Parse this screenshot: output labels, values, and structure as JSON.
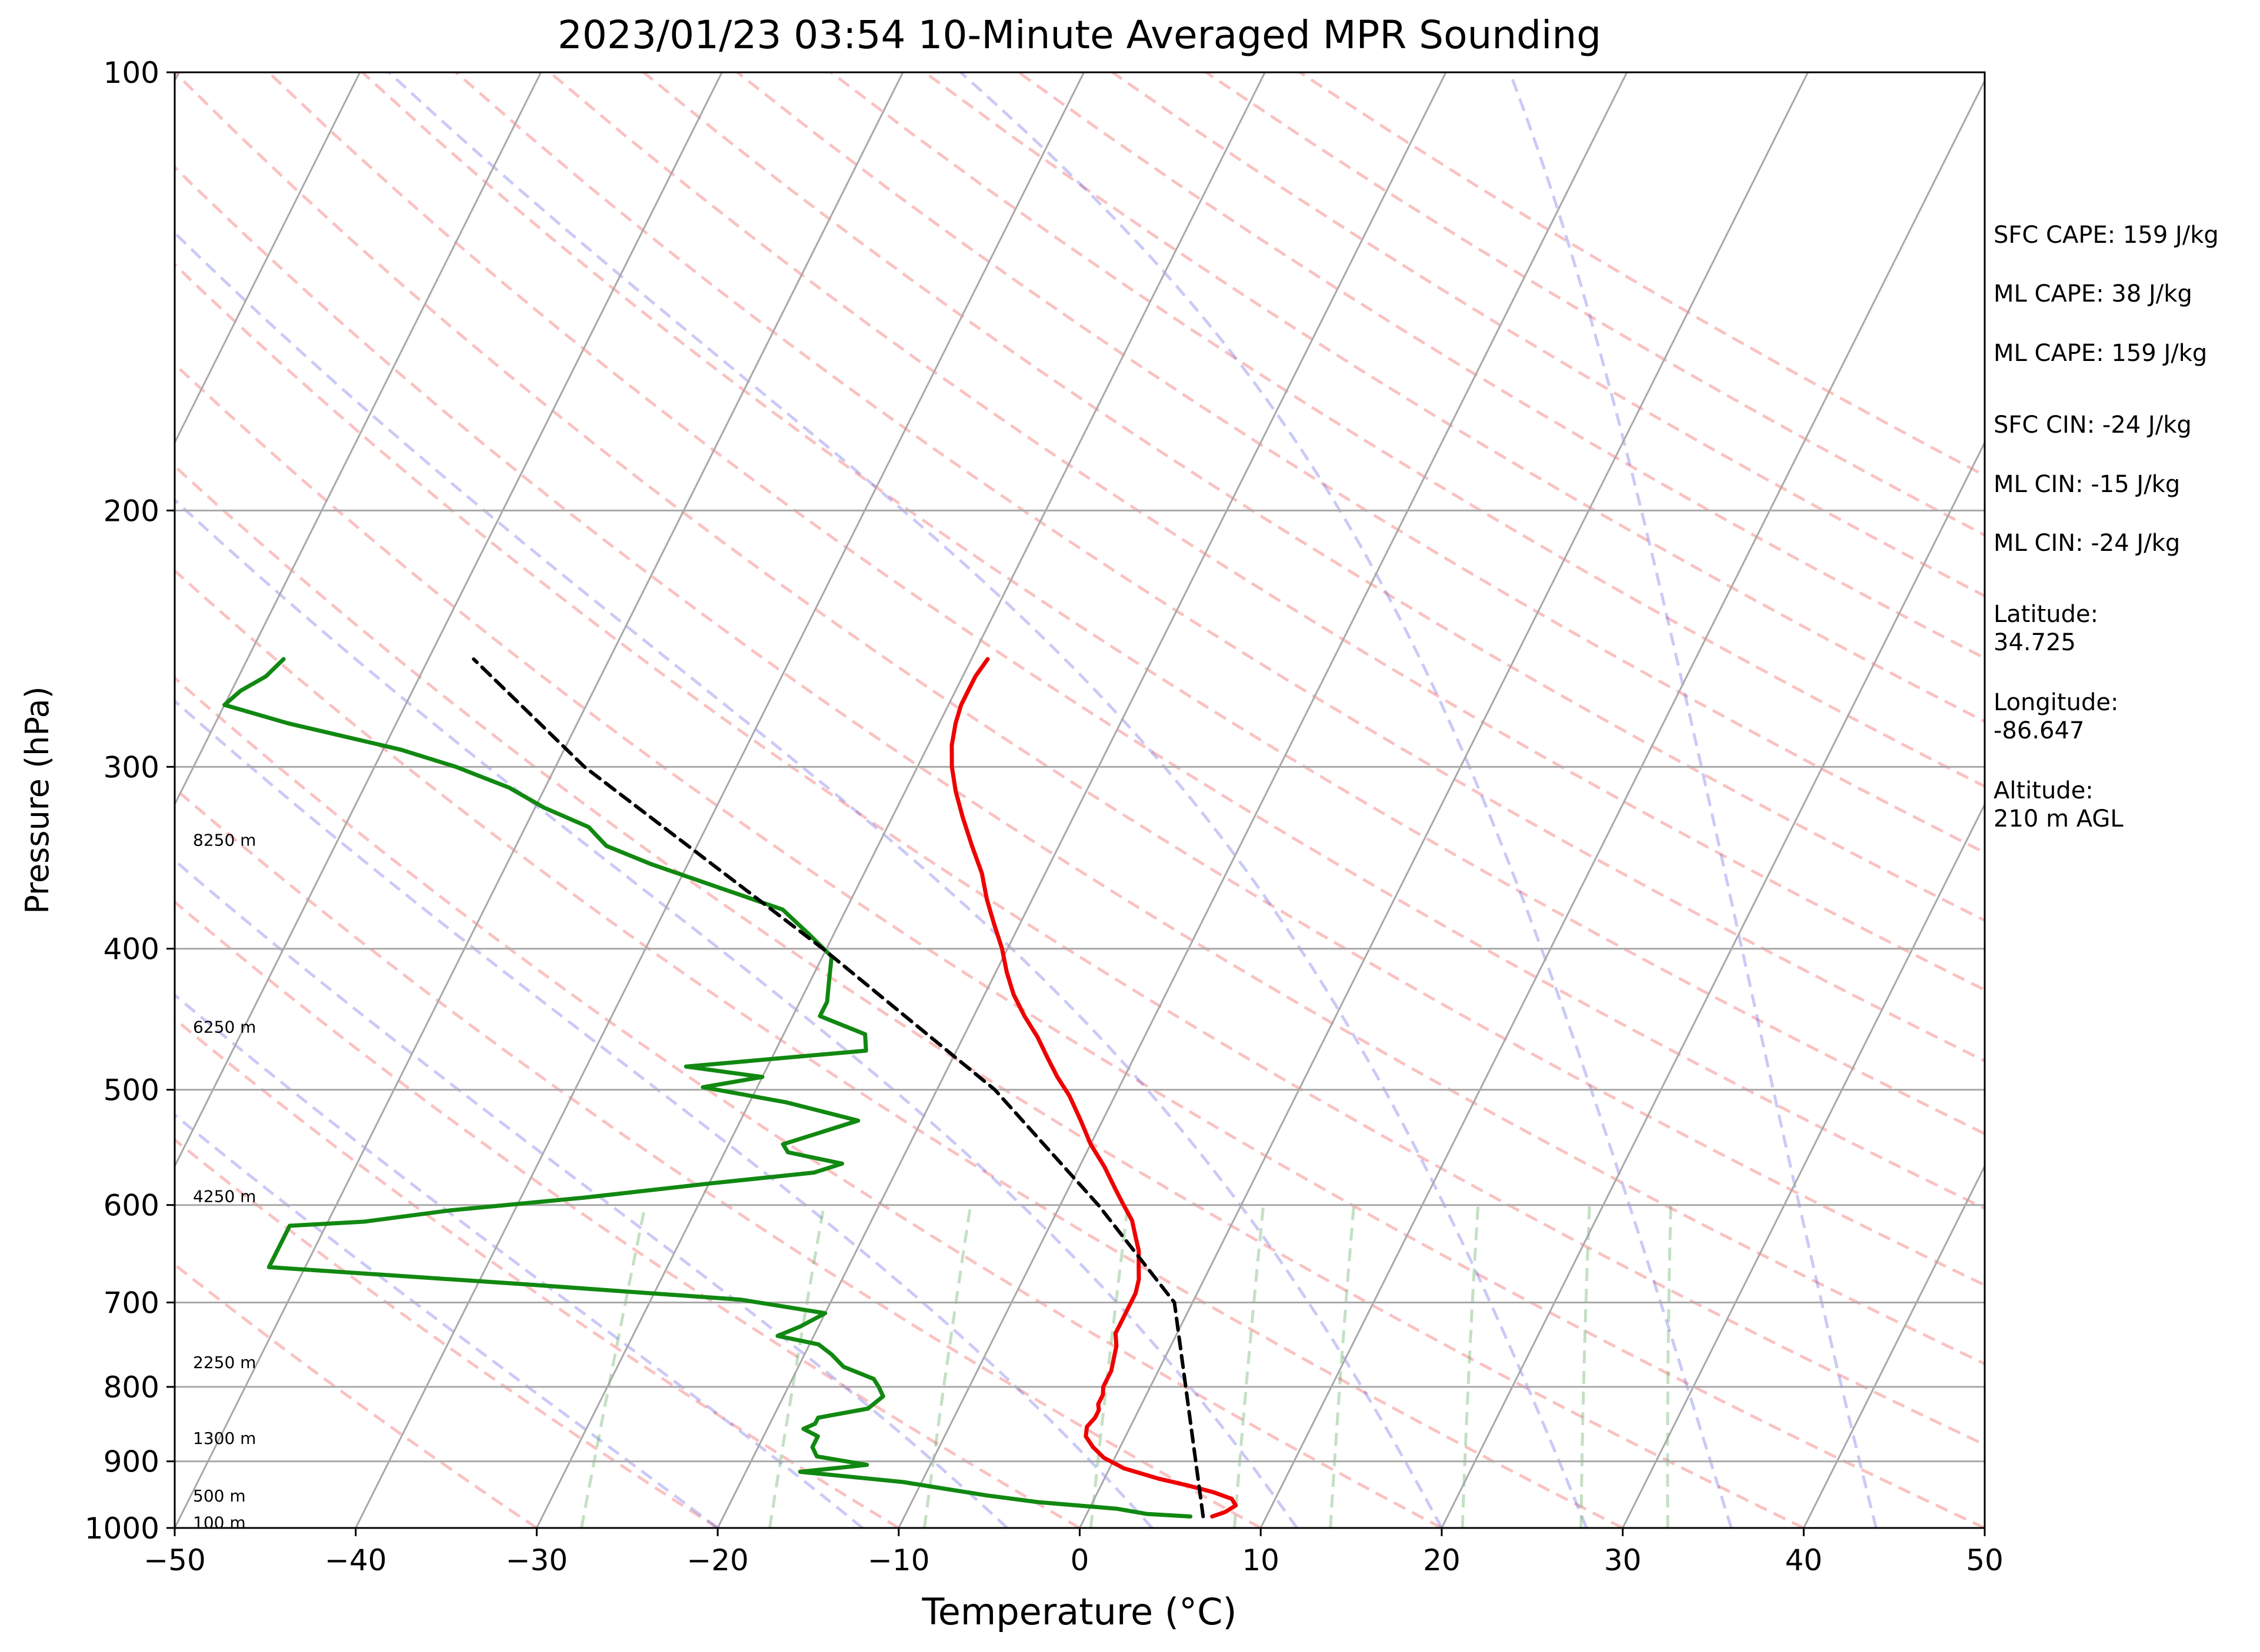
{
  "chart_data": {
    "type": "line",
    "title": "2023/01/23 03:54 10-Minute Averaged MPR Sounding",
    "xlabel": "Temperature (°C)",
    "ylabel": "Pressure (hPa)",
    "xlim": [
      -50,
      50
    ],
    "ylim": [
      1000,
      100
    ],
    "y_scale": "log",
    "skew": true,
    "grid": true,
    "x_ticks": [
      "−50",
      "−40",
      "−30",
      "−20",
      "−10",
      "0",
      "10",
      "20",
      "30",
      "40",
      "50"
    ],
    "y_ticks": [
      "100",
      "200",
      "300",
      "400",
      "500",
      "600",
      "700",
      "800",
      "900",
      "1000"
    ],
    "series": [
      {
        "role": "temperature",
        "color": "#ee0000",
        "p": [
          982,
          975,
          965,
          955,
          945,
          935,
          925,
          910,
          895,
          880,
          865,
          852,
          840,
          830,
          822,
          810,
          800,
          790,
          780,
          765,
          750,
          735,
          720,
          705,
          690,
          675,
          660,
          645,
          630,
          615,
          600,
          585,
          565,
          545,
          525,
          505,
          490,
          475,
          460,
          445,
          430,
          415,
          400,
          385,
          370,
          355,
          340,
          325,
          312,
          300,
          290,
          280,
          272,
          266,
          260,
          253
        ],
        "t": [
          7,
          7.6,
          8,
          7.6,
          6.4,
          4.8,
          3,
          0.8,
          -0.6,
          -1.5,
          -2.2,
          -2.4,
          -2.2,
          -2.2,
          -2.4,
          -2.4,
          -2.6,
          -2.6,
          -2.6,
          -2.8,
          -3,
          -3.4,
          -3.4,
          -3.4,
          -3.4,
          -3.6,
          -4,
          -4.4,
          -5,
          -5.6,
          -6.5,
          -7.4,
          -8.6,
          -10,
          -11.2,
          -12.5,
          -13.7,
          -14.8,
          -15.9,
          -17.2,
          -18.4,
          -19.4,
          -20.3,
          -21.4,
          -22.5,
          -23.5,
          -24.8,
          -26.1,
          -27.2,
          -28.1,
          -28.7,
          -29.1,
          -29.3,
          -29.3,
          -29.3,
          -29.1
        ]
      },
      {
        "role": "dewpoint",
        "color": "#118811",
        "p": [
          982,
          978,
          970,
          960,
          950,
          940,
          930,
          920,
          915,
          905,
          893,
          880,
          865,
          855,
          848,
          840,
          828,
          812,
          800,
          790,
          775,
          760,
          748,
          738,
          727,
          712,
          697,
          680,
          662,
          645,
          655,
          620,
          616,
          605,
          593,
          580,
          570,
          562,
          552,
          545,
          525,
          510,
          498,
          490,
          482,
          470,
          458,
          445,
          435,
          420,
          405,
          390,
          376,
          362,
          350,
          340,
          330,
          320,
          310,
          300,
          292,
          280,
          272,
          266,
          260,
          253
        ],
        "t": [
          5.8,
          3.3,
          1.5,
          -3,
          -6,
          -8.5,
          -11,
          -15,
          -17,
          -13.5,
          -16.5,
          -17,
          -17,
          -18,
          -17.5,
          -17.5,
          -15,
          -14.5,
          -15,
          -15.5,
          -17.5,
          -18.5,
          -19.5,
          -22,
          -21,
          -20,
          -25,
          -37.5,
          -52,
          -52,
          -52,
          -52,
          -48,
          -43.5,
          -36.5,
          -30,
          -24.5,
          -23.2,
          -26.5,
          -27,
          -23.5,
          -28,
          -33,
          -30,
          -34.5,
          -25,
          -25.5,
          -28.5,
          -28.5,
          -29,
          -29.5,
          -31.5,
          -33.5,
          -38,
          -42,
          -45,
          -46.5,
          -49.5,
          -52,
          -55.5,
          -59,
          -66,
          -70,
          -69.5,
          -68.5,
          -68
        ]
      },
      {
        "role": "parcel",
        "color": "#000000",
        "style": "dashed",
        "p": [
          982,
          700,
          600,
          500,
          400,
          300,
          253
        ],
        "t": [
          6.5,
          -1,
          -7.9,
          -16.8,
          -30.2,
          -48.4,
          -57.5
        ]
      }
    ],
    "height_labels": [
      {
        "p": 992,
        "text": "100 m"
      },
      {
        "p": 951,
        "text": "500 m"
      },
      {
        "p": 868,
        "text": "1300 m"
      },
      {
        "p": 770,
        "text": "2250 m"
      },
      {
        "p": 592,
        "text": "4250 m"
      },
      {
        "p": 453,
        "text": "6250 m"
      },
      {
        "p": 337,
        "text": "8250 m"
      }
    ]
  },
  "side_info": {
    "sfc_cape": "SFC CAPE: 159 J/kg",
    "ml_cape_1": "ML CAPE: 38 J/kg",
    "ml_cape_2": "ML CAPE: 159 J/kg",
    "sfc_cin": "SFC CIN: -24 J/kg",
    "ml_cin_1": "ML CIN: -15 J/kg",
    "ml_cin_2": "ML CIN: -24 J/kg",
    "lat_label": "Latitude:",
    "lat_value": "34.725",
    "lon_label": "Longitude:",
    "lon_value": "-86.647",
    "alt_label": "Altitude:",
    "alt_value": "210 m AGL"
  }
}
